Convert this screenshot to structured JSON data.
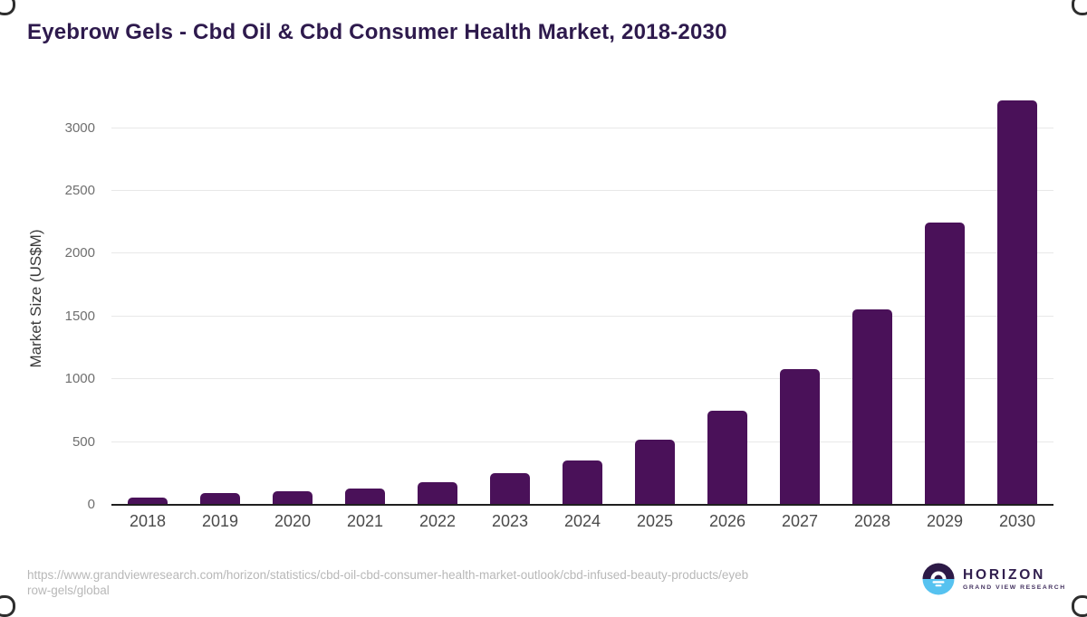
{
  "chart_data": {
    "type": "bar",
    "title": "Eyebrow Gels - Cbd Oil & Cbd Consumer Health Market, 2018-2030",
    "categories": [
      "2018",
      "2019",
      "2020",
      "2021",
      "2022",
      "2023",
      "2024",
      "2025",
      "2026",
      "2027",
      "2028",
      "2029",
      "2030"
    ],
    "values": [
      60,
      95,
      105,
      133,
      182,
      254,
      352,
      516,
      747,
      1080,
      1554,
      2248,
      3222
    ],
    "xlabel": "",
    "ylabel": "Market Size (US$M)",
    "ylim": [
      0,
      3300
    ],
    "yticks": [
      0,
      500,
      1000,
      1500,
      2000,
      2500,
      3000
    ],
    "grid": true,
    "legend": false,
    "bar_color": "#4a1159",
    "gridline_color": "#e8e8e8",
    "axis_color": "#1f1f1f"
  },
  "footer": {
    "source_url": "https://www.grandviewresearch.com/horizon/statistics/cbd-oil-cbd-consumer-health-market-outlook/cbd-infused-beauty-products/eyebrow-gels/global",
    "logo": {
      "brand": "HORIZON",
      "tagline": "GRAND VIEW RESEARCH",
      "purple": "#2d1a47",
      "blue": "#56c2f0"
    }
  }
}
